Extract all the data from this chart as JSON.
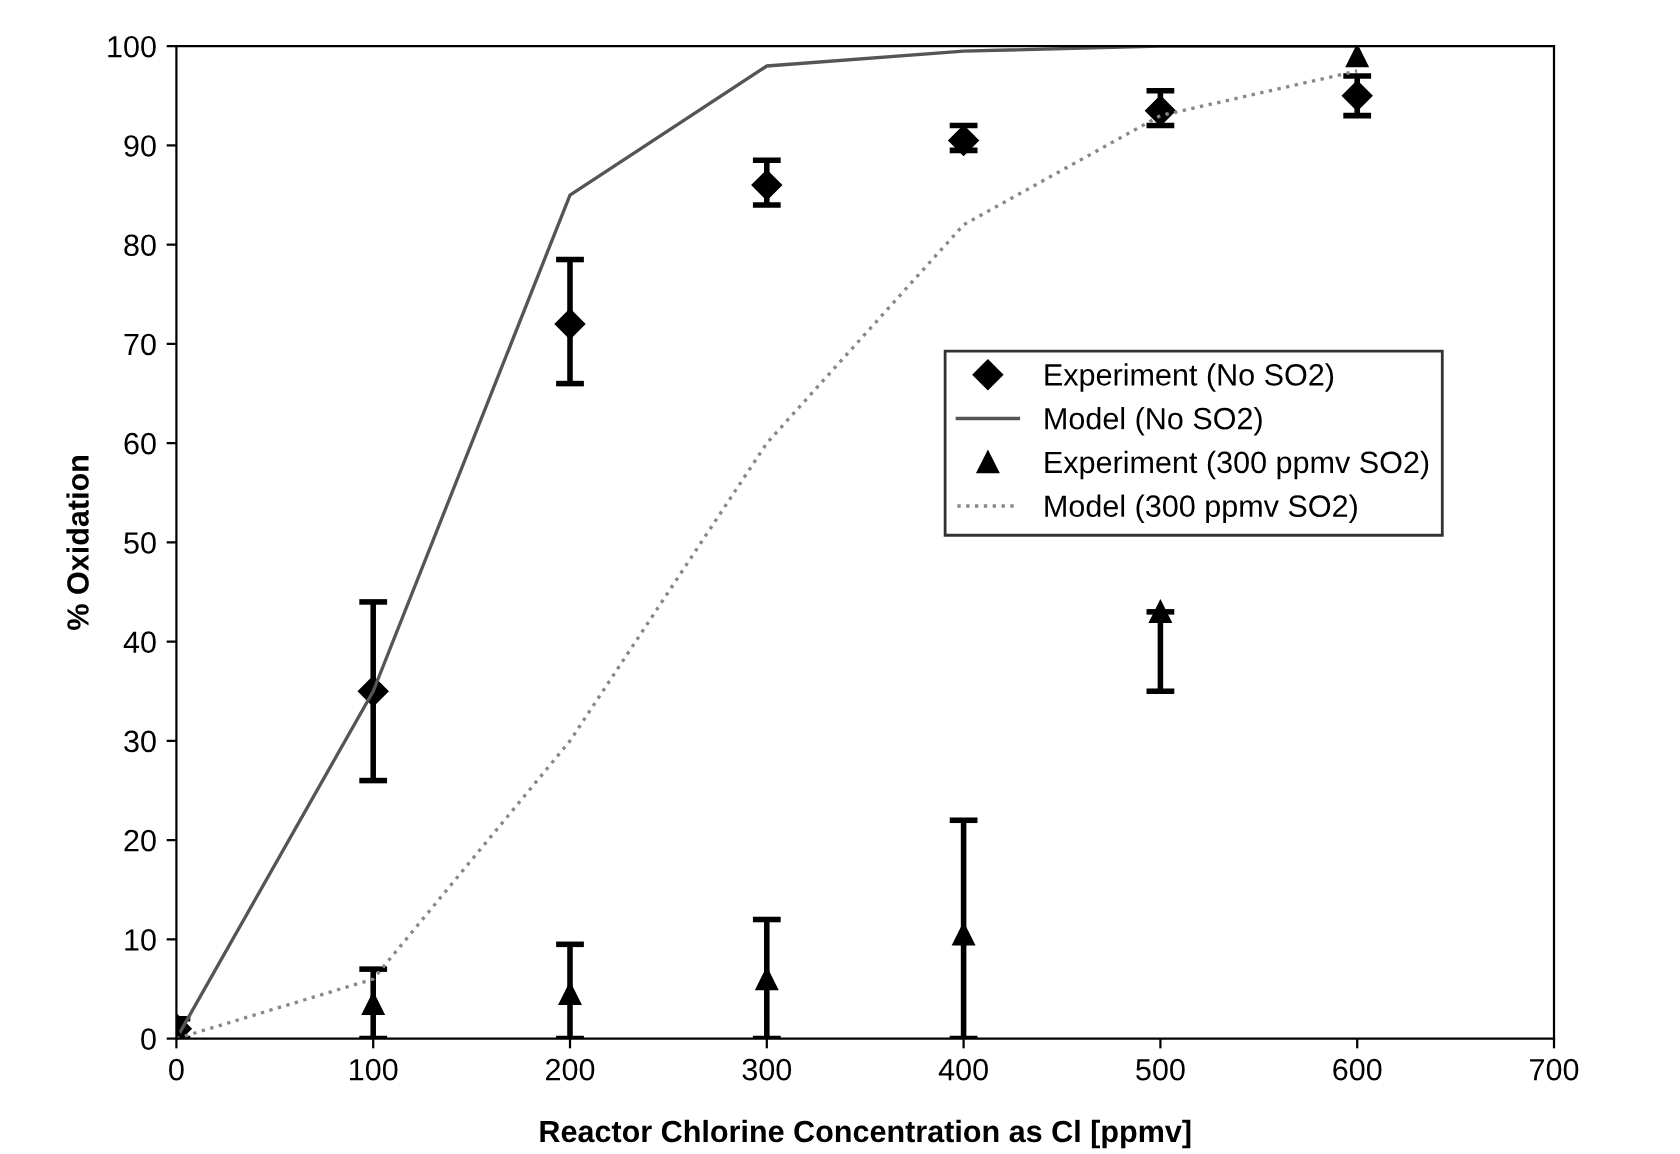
{
  "chart_data": {
    "type": "line",
    "xlabel": "Reactor Chlorine Concentration as Cl [ppmv]",
    "ylabel": "% Oxidation",
    "xlim": [
      0,
      700
    ],
    "xticks": [
      0,
      100,
      200,
      300,
      400,
      500,
      600,
      700
    ],
    "ylim": [
      0,
      100
    ],
    "yticks": [
      0,
      10,
      20,
      30,
      40,
      50,
      60,
      70,
      80,
      90,
      100
    ],
    "grid": false,
    "legend": "right",
    "series": [
      {
        "name": "Experiment (No SO2)",
        "type": "scatter",
        "marker": "diamond",
        "color": "#000000",
        "x": [
          0,
          100,
          200,
          300,
          400,
          500,
          600
        ],
        "values": [
          1,
          35,
          72,
          86,
          90.5,
          93.5,
          95
        ],
        "errors": [
          [
            0,
            2
          ],
          [
            26,
            44
          ],
          [
            66,
            78.5
          ],
          [
            84,
            88.5
          ],
          [
            89.5,
            92
          ],
          [
            92,
            95.5
          ],
          [
            93,
            97
          ]
        ]
      },
      {
        "name": "Model (No SO2)",
        "line_style": "solid",
        "color": "#555555",
        "x": [
          0,
          100,
          200,
          300,
          400,
          500,
          600
        ],
        "values": [
          0,
          35,
          85,
          98,
          99.5,
          100,
          100
        ]
      },
      {
        "name": "Experiment (300 ppmv SO2)",
        "type": "scatter",
        "marker": "triangle",
        "color": "#000000",
        "x": [
          0,
          100,
          200,
          300,
          400,
          500,
          600
        ],
        "values": [
          0,
          3.5,
          4.5,
          6,
          10.5,
          43,
          99
        ],
        "errors": [
          null,
          [
            0,
            7
          ],
          [
            0,
            9.5
          ],
          [
            0,
            12
          ],
          [
            0,
            22
          ],
          [
            35,
            43
          ],
          null
        ]
      },
      {
        "name": "Model (300 ppmv SO2)",
        "line_style": "dotted",
        "color": "#888888",
        "x": [
          0,
          100,
          200,
          300,
          400,
          500,
          600
        ],
        "values": [
          0,
          6,
          30,
          60,
          82,
          93,
          97.5
        ]
      }
    ]
  }
}
